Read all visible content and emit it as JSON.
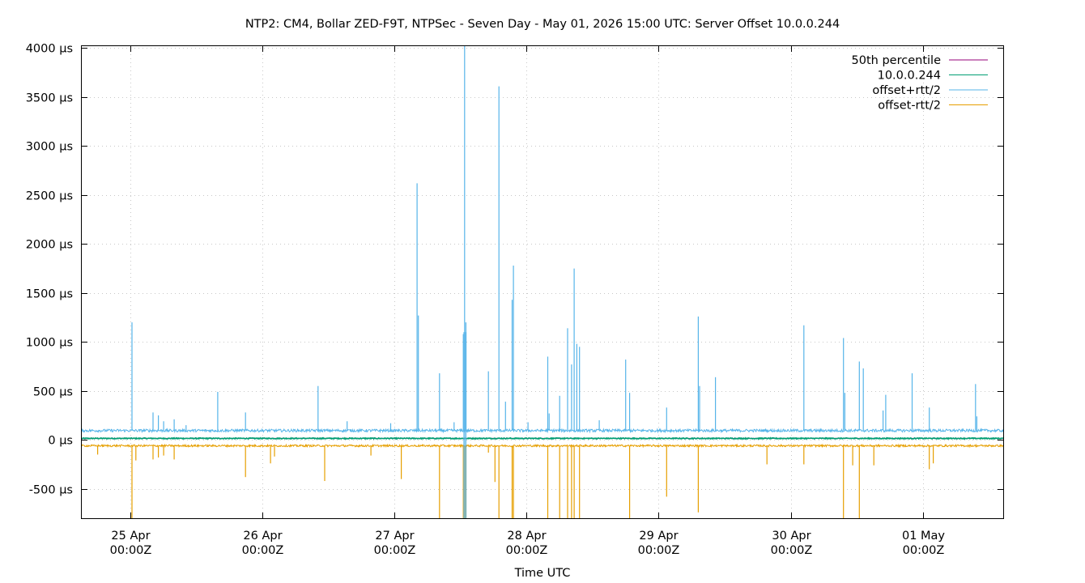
{
  "chart_data": {
    "type": "line",
    "title": "NTP2: CM4, Bollar ZED-F9T, NTPSec - Seven Day - May 01, 2026 15:00 UTC: Server Offset 10.0.0.244",
    "xlabel": "Time UTC",
    "ylabel": "",
    "ylim": [
      -800,
      4020
    ],
    "xlim_days": [
      -0.37,
      6.61
    ],
    "yticks": [
      {
        "value": 4000,
        "label": "4000 µs"
      },
      {
        "value": 3500,
        "label": "3500 µs"
      },
      {
        "value": 3000,
        "label": "3000 µs"
      },
      {
        "value": 2500,
        "label": "2500 µs"
      },
      {
        "value": 2000,
        "label": "2000 µs"
      },
      {
        "value": 1500,
        "label": "1500 µs"
      },
      {
        "value": 1000,
        "label": "1000 µs"
      },
      {
        "value": 500,
        "label": "500 µs"
      },
      {
        "value": 0,
        "label": "0 µs"
      },
      {
        "value": -500,
        "label": "-500 µs"
      }
    ],
    "xticks": [
      {
        "day": 0,
        "date": "25 Apr",
        "time": "00:00Z"
      },
      {
        "day": 1,
        "date": "26 Apr",
        "time": "00:00Z"
      },
      {
        "day": 2,
        "date": "27 Apr",
        "time": "00:00Z"
      },
      {
        "day": 3,
        "date": "28 Apr",
        "time": "00:00Z"
      },
      {
        "day": 4,
        "date": "29 Apr",
        "time": "00:00Z"
      },
      {
        "day": 5,
        "date": "30 Apr",
        "time": "00:00Z"
      },
      {
        "day": 6,
        "date": "01 May",
        "time": "00:00Z"
      }
    ],
    "grid": true,
    "legend_position": "top-right",
    "series": [
      {
        "name": "50th percentile",
        "color": "#94007a",
        "values": [
          {
            "x": -0.37,
            "y": 15
          },
          {
            "x": 6.61,
            "y": 15
          }
        ]
      },
      {
        "name": "10.0.0.244",
        "color": "#009e73",
        "baseline": 15
      },
      {
        "name": "offset+rtt/2",
        "color": "#56b4e9",
        "baseline": 95,
        "spikes": [
          {
            "x": 0.01,
            "y": 1200
          },
          {
            "x": 0.17,
            "y": 280
          },
          {
            "x": 0.21,
            "y": 250
          },
          {
            "x": 0.25,
            "y": 190
          },
          {
            "x": 0.33,
            "y": 210
          },
          {
            "x": 0.42,
            "y": 150
          },
          {
            "x": 0.66,
            "y": 490
          },
          {
            "x": 0.87,
            "y": 280
          },
          {
            "x": 1.42,
            "y": 550
          },
          {
            "x": 1.64,
            "y": 190
          },
          {
            "x": 1.97,
            "y": 170
          },
          {
            "x": 2.17,
            "y": 2620
          },
          {
            "x": 2.18,
            "y": 1270
          },
          {
            "x": 2.34,
            "y": 680
          },
          {
            "x": 2.45,
            "y": 180
          },
          {
            "x": 2.52,
            "y": 1080
          },
          {
            "x": 2.53,
            "y": 4020
          },
          {
            "x": 2.54,
            "y": 1200
          },
          {
            "x": 2.71,
            "y": 700
          },
          {
            "x": 2.79,
            "y": 3610
          },
          {
            "x": 2.84,
            "y": 390
          },
          {
            "x": 2.89,
            "y": 1430
          },
          {
            "x": 2.9,
            "y": 1780
          },
          {
            "x": 3.01,
            "y": 180
          },
          {
            "x": 3.16,
            "y": 850
          },
          {
            "x": 3.17,
            "y": 270
          },
          {
            "x": 3.25,
            "y": 450
          },
          {
            "x": 3.31,
            "y": 1140
          },
          {
            "x": 3.34,
            "y": 770
          },
          {
            "x": 3.36,
            "y": 1750
          },
          {
            "x": 3.38,
            "y": 980
          },
          {
            "x": 3.4,
            "y": 950
          },
          {
            "x": 3.55,
            "y": 200
          },
          {
            "x": 3.75,
            "y": 820
          },
          {
            "x": 3.78,
            "y": 480
          },
          {
            "x": 4.06,
            "y": 330
          },
          {
            "x": 4.3,
            "y": 1260
          },
          {
            "x": 4.31,
            "y": 550
          },
          {
            "x": 4.43,
            "y": 640
          },
          {
            "x": 5.1,
            "y": 1170
          },
          {
            "x": 5.4,
            "y": 1040
          },
          {
            "x": 5.41,
            "y": 480
          },
          {
            "x": 5.52,
            "y": 800
          },
          {
            "x": 5.55,
            "y": 730
          },
          {
            "x": 5.7,
            "y": 300
          },
          {
            "x": 5.72,
            "y": 460
          },
          {
            "x": 5.92,
            "y": 680
          },
          {
            "x": 6.05,
            "y": 330
          },
          {
            "x": 6.4,
            "y": 570
          },
          {
            "x": 6.41,
            "y": 240
          }
        ]
      },
      {
        "name": "offset-rtt/2",
        "color": "#e69f00",
        "baseline": -60,
        "spikes": [
          {
            "x": -0.25,
            "y": -150
          },
          {
            "x": 0.01,
            "y": -800
          },
          {
            "x": 0.04,
            "y": -210
          },
          {
            "x": 0.17,
            "y": -200
          },
          {
            "x": 0.21,
            "y": -180
          },
          {
            "x": 0.25,
            "y": -160
          },
          {
            "x": 0.33,
            "y": -200
          },
          {
            "x": 0.87,
            "y": -380
          },
          {
            "x": 1.06,
            "y": -240
          },
          {
            "x": 1.09,
            "y": -170
          },
          {
            "x": 1.47,
            "y": -420
          },
          {
            "x": 1.82,
            "y": -160
          },
          {
            "x": 2.05,
            "y": -400
          },
          {
            "x": 2.34,
            "y": -800
          },
          {
            "x": 2.52,
            "y": -800
          },
          {
            "x": 2.53,
            "y": -800
          },
          {
            "x": 2.54,
            "y": -800
          },
          {
            "x": 2.71,
            "y": -130
          },
          {
            "x": 2.76,
            "y": -430
          },
          {
            "x": 2.79,
            "y": -800
          },
          {
            "x": 2.89,
            "y": -800
          },
          {
            "x": 2.9,
            "y": -800
          },
          {
            "x": 3.16,
            "y": -800
          },
          {
            "x": 3.25,
            "y": -800
          },
          {
            "x": 3.31,
            "y": -800
          },
          {
            "x": 3.34,
            "y": -800
          },
          {
            "x": 3.36,
            "y": -800
          },
          {
            "x": 3.4,
            "y": -800
          },
          {
            "x": 3.78,
            "y": -800
          },
          {
            "x": 4.06,
            "y": -580
          },
          {
            "x": 4.3,
            "y": -740
          },
          {
            "x": 4.82,
            "y": -250
          },
          {
            "x": 5.1,
            "y": -250
          },
          {
            "x": 5.4,
            "y": -800
          },
          {
            "x": 5.52,
            "y": -800
          },
          {
            "x": 5.47,
            "y": -260
          },
          {
            "x": 5.63,
            "y": -260
          },
          {
            "x": 6.05,
            "y": -300
          },
          {
            "x": 6.08,
            "y": -240
          }
        ]
      }
    ]
  }
}
